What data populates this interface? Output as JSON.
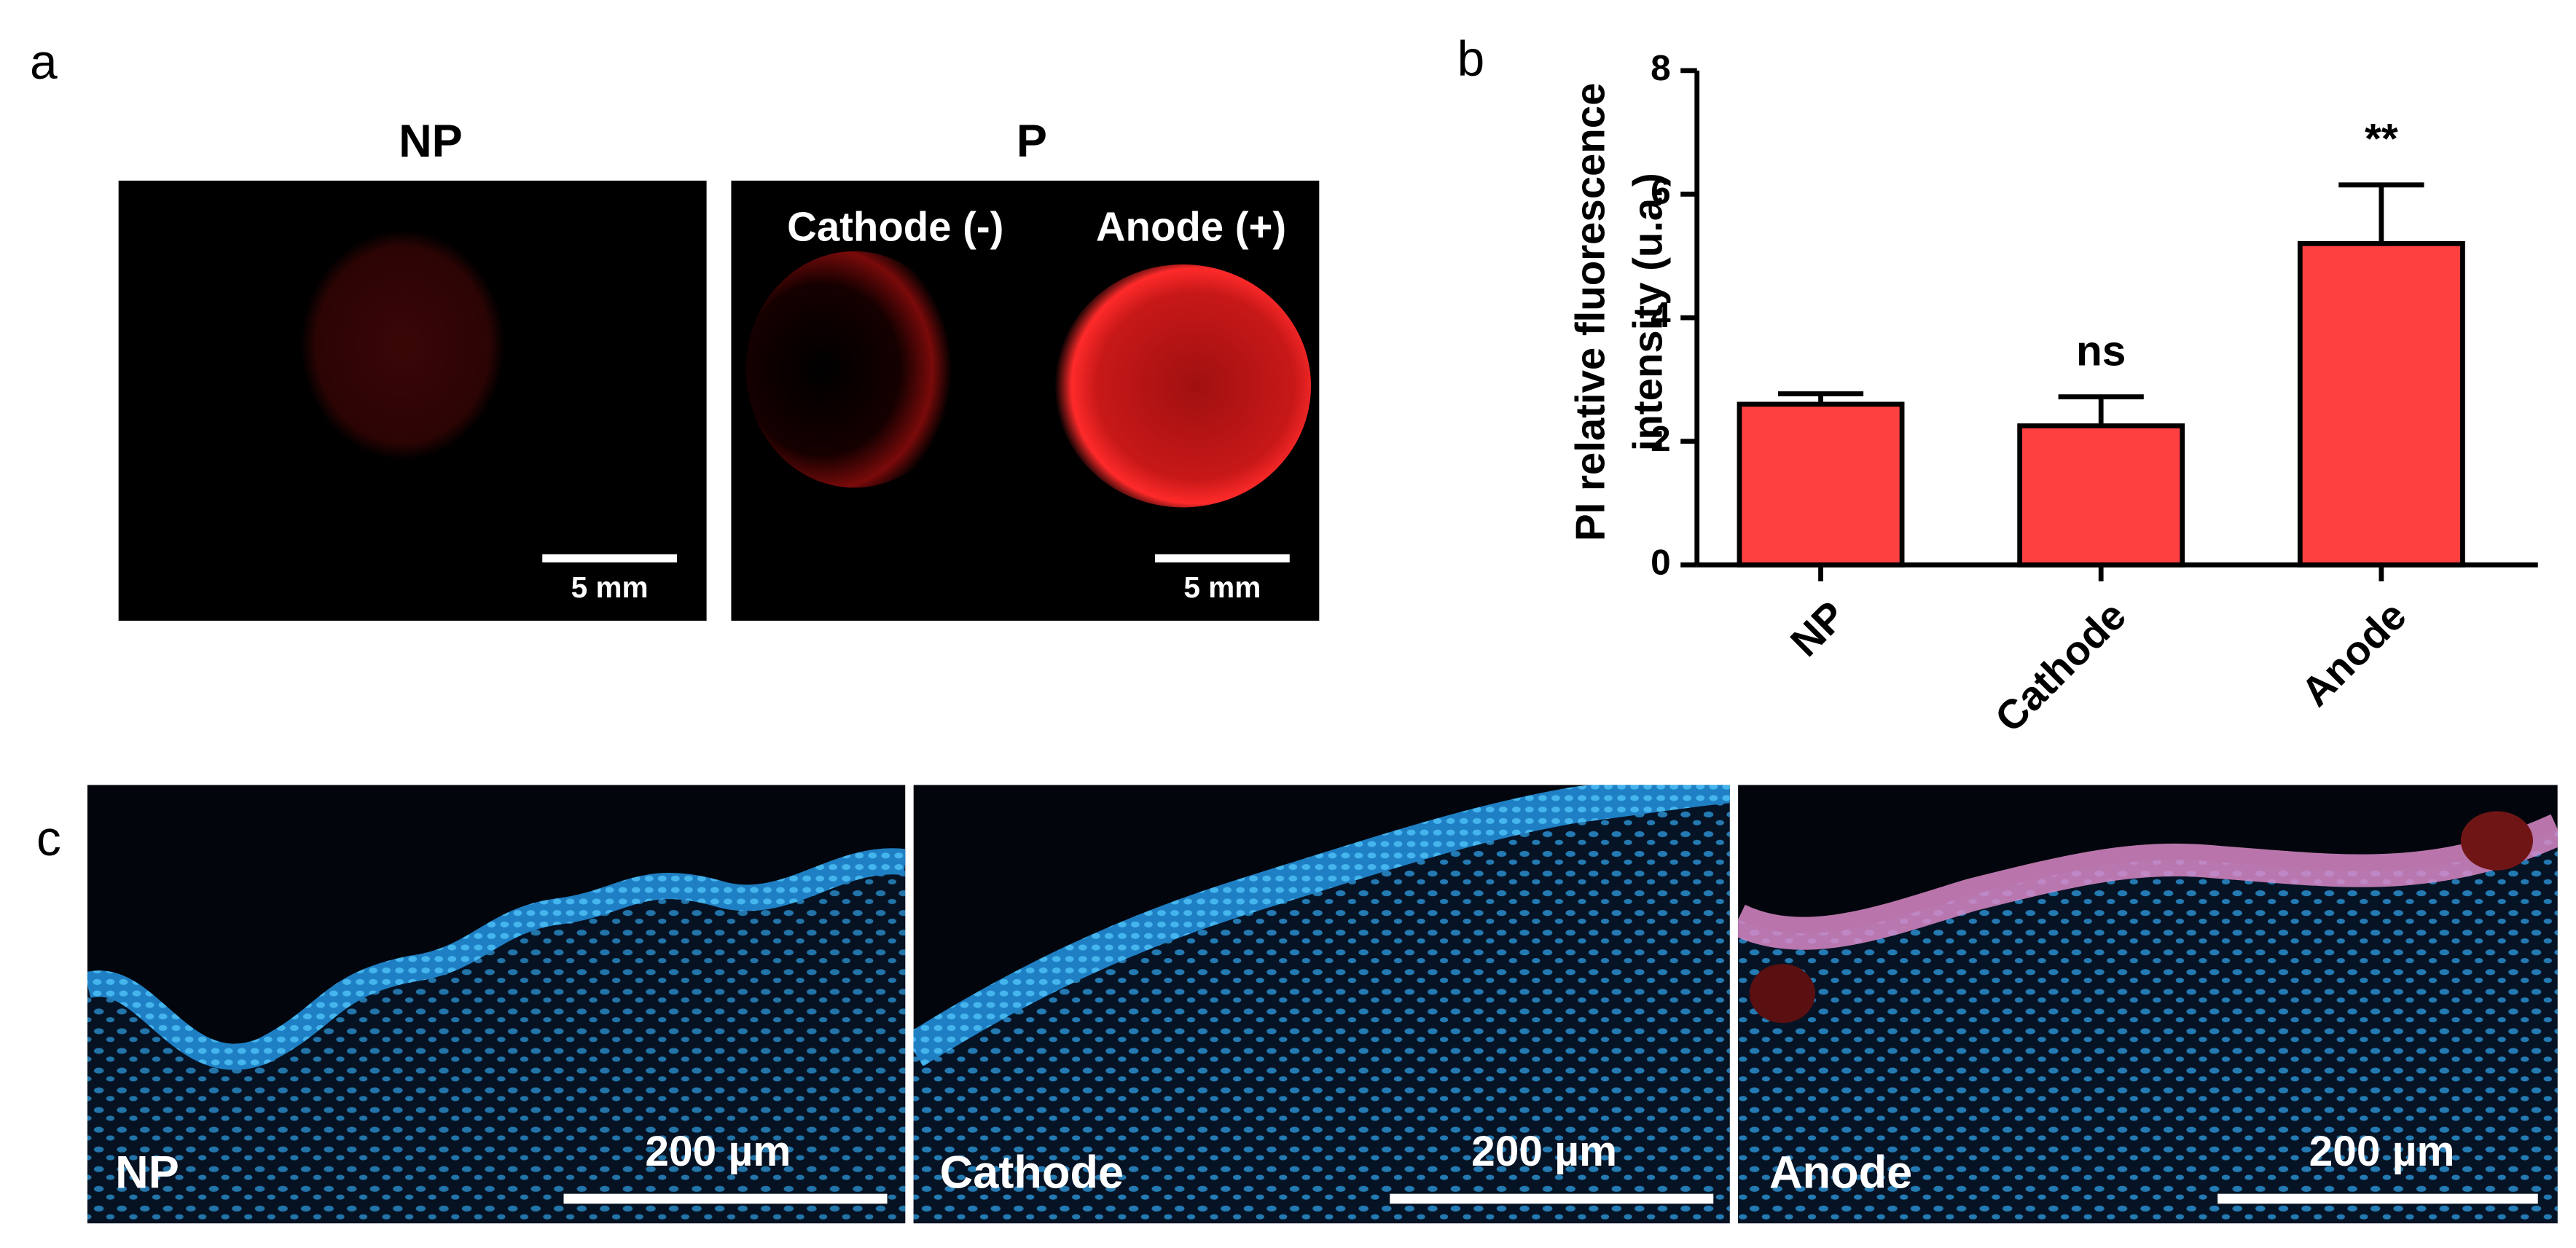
{
  "panel_a": {
    "label": "a",
    "images": [
      {
        "title": "NP",
        "scale_bar": "5 mm"
      },
      {
        "title": "P",
        "labels": [
          "Cathode (-)",
          "Anode (+)"
        ],
        "scale_bar": "5 mm"
      }
    ]
  },
  "chart_data": {
    "type": "bar",
    "panel_label": "b",
    "y_label": [
      "PI relative fluorescence",
      "intensity (u.a.)"
    ],
    "categories": [
      "NP",
      "Cathode",
      "Anode"
    ],
    "values": [
      2.6,
      2.25,
      5.2
    ],
    "errors": [
      0.17,
      0.47,
      0.95
    ],
    "annotations": [
      null,
      "ns",
      "**"
    ],
    "color": "#ff4040",
    "ylim": [
      0,
      8
    ],
    "yticks": [
      0,
      2,
      4,
      6,
      8
    ]
  },
  "panel_c": {
    "label": "c",
    "images": [
      {
        "label": "NP",
        "scale_bar": "200 µm"
      },
      {
        "label": "Cathode",
        "scale_bar": "200 µm"
      },
      {
        "label": "Anode",
        "scale_bar": "200 µm"
      }
    ]
  }
}
